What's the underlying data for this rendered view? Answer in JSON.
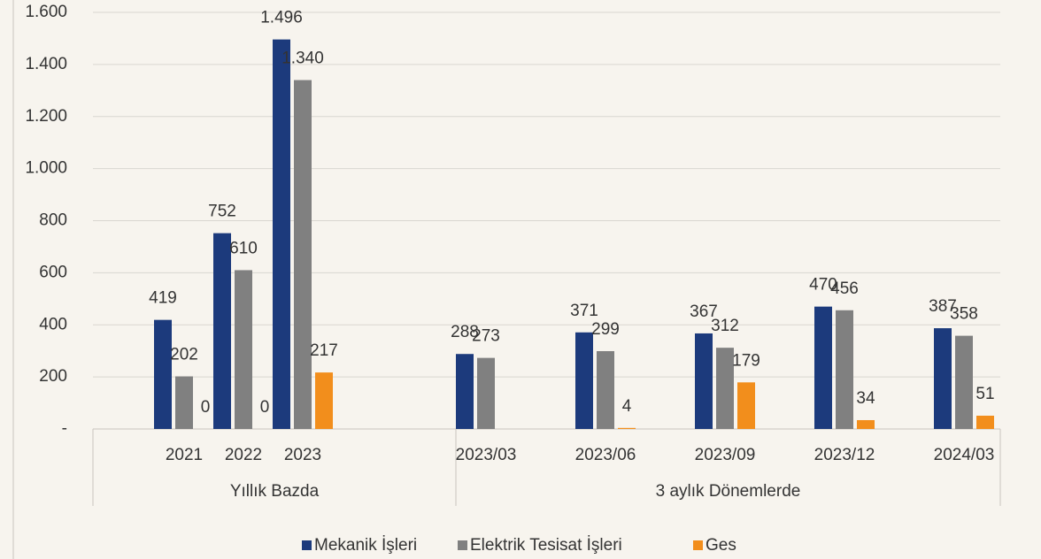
{
  "chart_data": {
    "type": "bar",
    "groups": [
      {
        "name": "Yıllık Bazda",
        "categories": [
          "2021",
          "2022",
          "2023"
        ]
      },
      {
        "name": "3 aylık Dönemlerde",
        "categories": [
          "2023/03",
          "2023/06",
          "2023/09",
          "2023/12",
          "2024/03"
        ]
      }
    ],
    "series": [
      {
        "name": "Mekanik İşleri",
        "color": "#1c3a7c",
        "values": [
          419,
          752,
          1496,
          288,
          371,
          367,
          470,
          387
        ],
        "value_labels": [
          "419",
          "752",
          "1.496",
          "288",
          "371",
          "367",
          "470",
          "387"
        ]
      },
      {
        "name": "Elektrik Tesisat İşleri",
        "color": "#808080",
        "values": [
          202,
          610,
          1340,
          273,
          299,
          312,
          456,
          358
        ],
        "value_labels": [
          "202",
          "610",
          "1.340",
          "273",
          "299",
          "312",
          "456",
          "358"
        ]
      },
      {
        "name": "Ges",
        "color": "#f28e1c",
        "values": [
          0,
          0,
          217,
          null,
          4,
          179,
          34,
          51
        ]
      }
    ],
    "ylim": [
      0,
      1600
    ],
    "yticks": [
      {
        "value": 0,
        "label": "-"
      },
      200,
      400,
      600,
      800,
      {
        "value": 1000,
        "label": "1.000"
      },
      {
        "value": 1200,
        "label": "1.200"
      },
      {
        "value": 1400,
        "label": "1.400"
      },
      {
        "value": 1600,
        "label": "1.600"
      }
    ],
    "grid": true,
    "legend": "bottom"
  }
}
